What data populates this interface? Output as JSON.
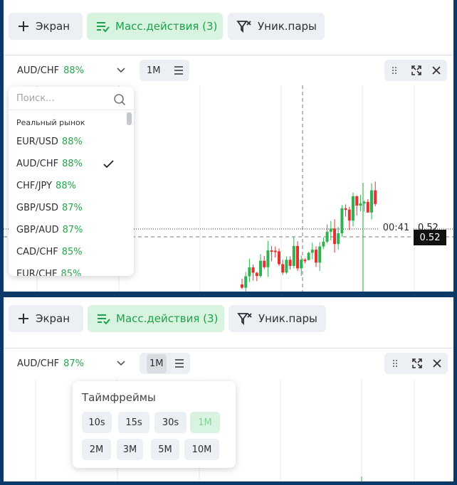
{
  "top": {
    "toolbar": {
      "screen": "Экран",
      "mass_actions": "Масс.действия (3)",
      "unique_pairs": "Уник.пары"
    },
    "chart_header": {
      "pair": "AUD/CHF",
      "payout": "88%",
      "timeframe": "1M"
    },
    "dropdown": {
      "search_placeholder": "Поиск...",
      "section": "Реальный рынок",
      "items": [
        {
          "pair": "EUR/USD",
          "payout": "88%"
        },
        {
          "pair": "AUD/CHF",
          "payout": "88%",
          "selected": true
        },
        {
          "pair": "CHF/JPY",
          "payout": "88%"
        },
        {
          "pair": "GBP/USD",
          "payout": "87%"
        },
        {
          "pair": "GBP/AUD",
          "payout": "87%"
        },
        {
          "pair": "CAD/CHF",
          "payout": "85%"
        },
        {
          "pair": "EUR/CHF",
          "payout": "85%"
        }
      ]
    },
    "chart": {
      "time_label": "00:41",
      "price_labels": [
        "0.52",
        "0.52"
      ]
    }
  },
  "bottom": {
    "toolbar": {
      "screen": "Экран",
      "mass_actions": "Масс.действия (3)",
      "unique_pairs": "Уник.пары"
    },
    "chart_header": {
      "pair": "AUD/CHF",
      "payout": "87%",
      "timeframe": "1M"
    },
    "timeframes": {
      "title": "Таймфреймы",
      "options": [
        {
          "label": "10s"
        },
        {
          "label": "15s"
        },
        {
          "label": "30s"
        },
        {
          "label": "1M",
          "active": true
        },
        {
          "label": "2M"
        },
        {
          "label": "3M"
        },
        {
          "label": "5M"
        },
        {
          "label": "10M"
        }
      ]
    }
  }
}
